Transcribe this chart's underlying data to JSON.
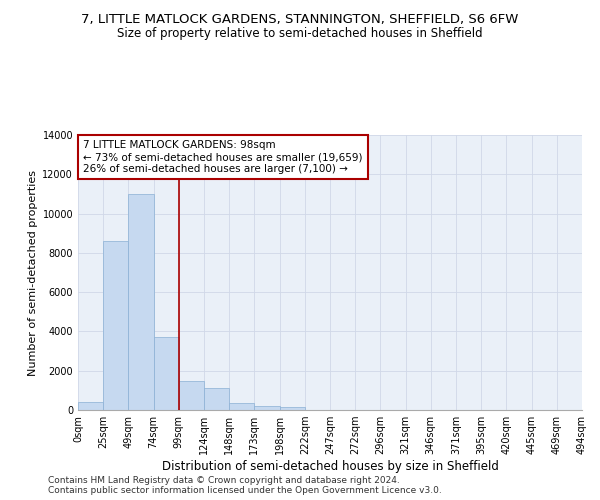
{
  "title": "7, LITTLE MATLOCK GARDENS, STANNINGTON, SHEFFIELD, S6 6FW",
  "subtitle": "Size of property relative to semi-detached houses in Sheffield",
  "xlabel": "Distribution of semi-detached houses by size in Sheffield",
  "ylabel": "Number of semi-detached properties",
  "footer_line1": "Contains HM Land Registry data © Crown copyright and database right 2024.",
  "footer_line2": "Contains public sector information licensed under the Open Government Licence v3.0.",
  "bin_labels": [
    "0sqm",
    "25sqm",
    "49sqm",
    "74sqm",
    "99sqm",
    "124sqm",
    "148sqm",
    "173sqm",
    "198sqm",
    "222sqm",
    "247sqm",
    "272sqm",
    "296sqm",
    "321sqm",
    "346sqm",
    "371sqm",
    "395sqm",
    "420sqm",
    "445sqm",
    "469sqm",
    "494sqm"
  ],
  "bar_heights": [
    400,
    8600,
    11000,
    3700,
    1500,
    1100,
    350,
    200,
    150,
    0,
    0,
    0,
    0,
    0,
    0,
    0,
    0,
    0,
    0,
    0
  ],
  "bar_color": "#c6d9f0",
  "bar_edge_color": "#8ab0d4",
  "grid_color": "#d0d8e8",
  "bg_color": "#eaf0f8",
  "property_line_x": 4,
  "annotation_title": "7 LITTLE MATLOCK GARDENS: 98sqm",
  "annotation_line1": "← 73% of semi-detached houses are smaller (19,659)",
  "annotation_line2": "26% of semi-detached houses are larger (7,100) →",
  "annotation_box_color": "#aa0000",
  "ylim": [
    0,
    14000
  ],
  "yticks": [
    0,
    2000,
    4000,
    6000,
    8000,
    10000,
    12000,
    14000
  ],
  "title_fontsize": 9.5,
  "subtitle_fontsize": 8.5,
  "xlabel_fontsize": 8.5,
  "ylabel_fontsize": 8.0,
  "tick_fontsize": 7.0,
  "annotation_fontsize": 7.5,
  "footer_fontsize": 6.5
}
